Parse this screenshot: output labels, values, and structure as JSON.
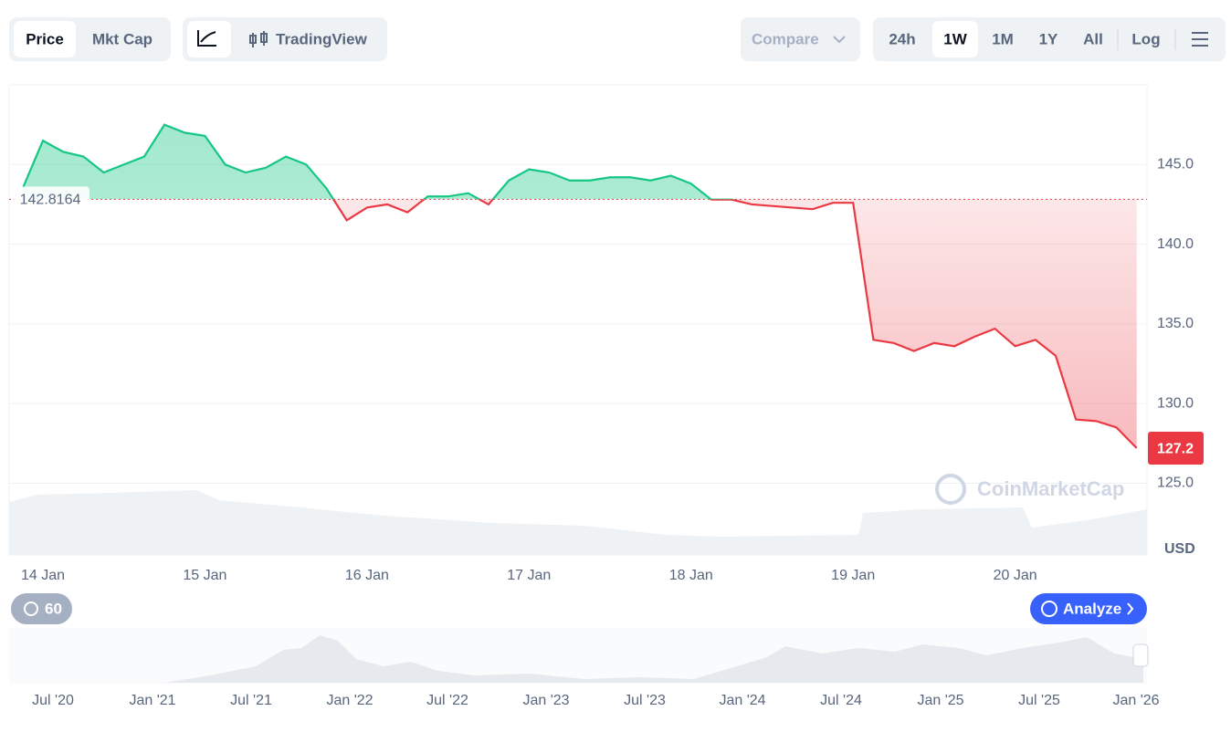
{
  "toolbar": {
    "metric_tabs": [
      "Price",
      "Mkt Cap"
    ],
    "view_tabs": [
      "TradingView"
    ],
    "compare": "Compare",
    "ranges": [
      "24h",
      "1W",
      "1M",
      "1Y",
      "All"
    ],
    "log": "Log"
  },
  "chart_data": {
    "type": "line",
    "categories": [
      null,
      "14 Jan",
      null,
      null,
      null,
      null,
      null,
      null,
      null,
      "15 Jan",
      null,
      null,
      null,
      null,
      null,
      null,
      null,
      "16 Jan",
      null,
      null,
      null,
      null,
      null,
      null,
      null,
      "17 Jan",
      null,
      null,
      null,
      null,
      null,
      null,
      null,
      "18 Jan",
      null,
      null,
      null,
      null,
      null,
      null,
      null,
      "19 Jan",
      null,
      null,
      null,
      null,
      null,
      null,
      null,
      "20 Jan",
      null,
      null,
      null,
      null,
      null,
      null
    ],
    "series": [
      {
        "name": "Price",
        "color": "#16c784",
        "values": [
          143.5,
          146.5,
          145.8,
          145.5,
          144.5,
          145.0,
          145.5,
          147.5,
          147.0,
          146.8,
          145.0,
          144.5,
          144.8,
          145.5,
          145.0,
          143.5,
          141.5,
          142.3,
          142.5,
          142.0,
          143.0,
          143.0,
          143.2,
          142.5,
          144.0,
          144.7,
          144.5,
          144.0,
          144.0,
          144.2,
          144.2,
          144.0,
          144.3,
          143.8,
          142.8,
          142.8,
          142.5,
          142.4,
          142.3,
          142.2,
          142.6,
          142.6,
          134.0,
          133.8,
          133.3,
          133.8,
          133.6,
          134.2,
          134.7,
          133.6,
          134.0,
          133.0,
          129.0,
          128.9,
          128.5,
          127.2
        ]
      }
    ],
    "down_color": "#ea3943",
    "baseline": 142.8164,
    "current_price": 127.2,
    "ylim": [
      120.5,
      150.0
    ],
    "yticks": [
      {
        "value": 125,
        "label": "125.0"
      },
      {
        "value": 130,
        "label": "130.0"
      },
      {
        "value": 135,
        "label": "135.0"
      },
      {
        "value": 140,
        "label": "140.0"
      },
      {
        "value": 145,
        "label": "145.0"
      }
    ],
    "y_unit": "USD",
    "grid": true,
    "watermark": "CoinMarketCap"
  },
  "footer": {
    "interval": "60",
    "analyze": "Analyze"
  },
  "navigator": {
    "labels": [
      "Jul '20",
      "Jan '21",
      "Jul '21",
      "Jan '22",
      "Jul '22",
      "Jan '23",
      "Jul '23",
      "Jan '24",
      "Jul '24",
      "Jan '25",
      "Jul '25",
      "Jan '26"
    ]
  }
}
